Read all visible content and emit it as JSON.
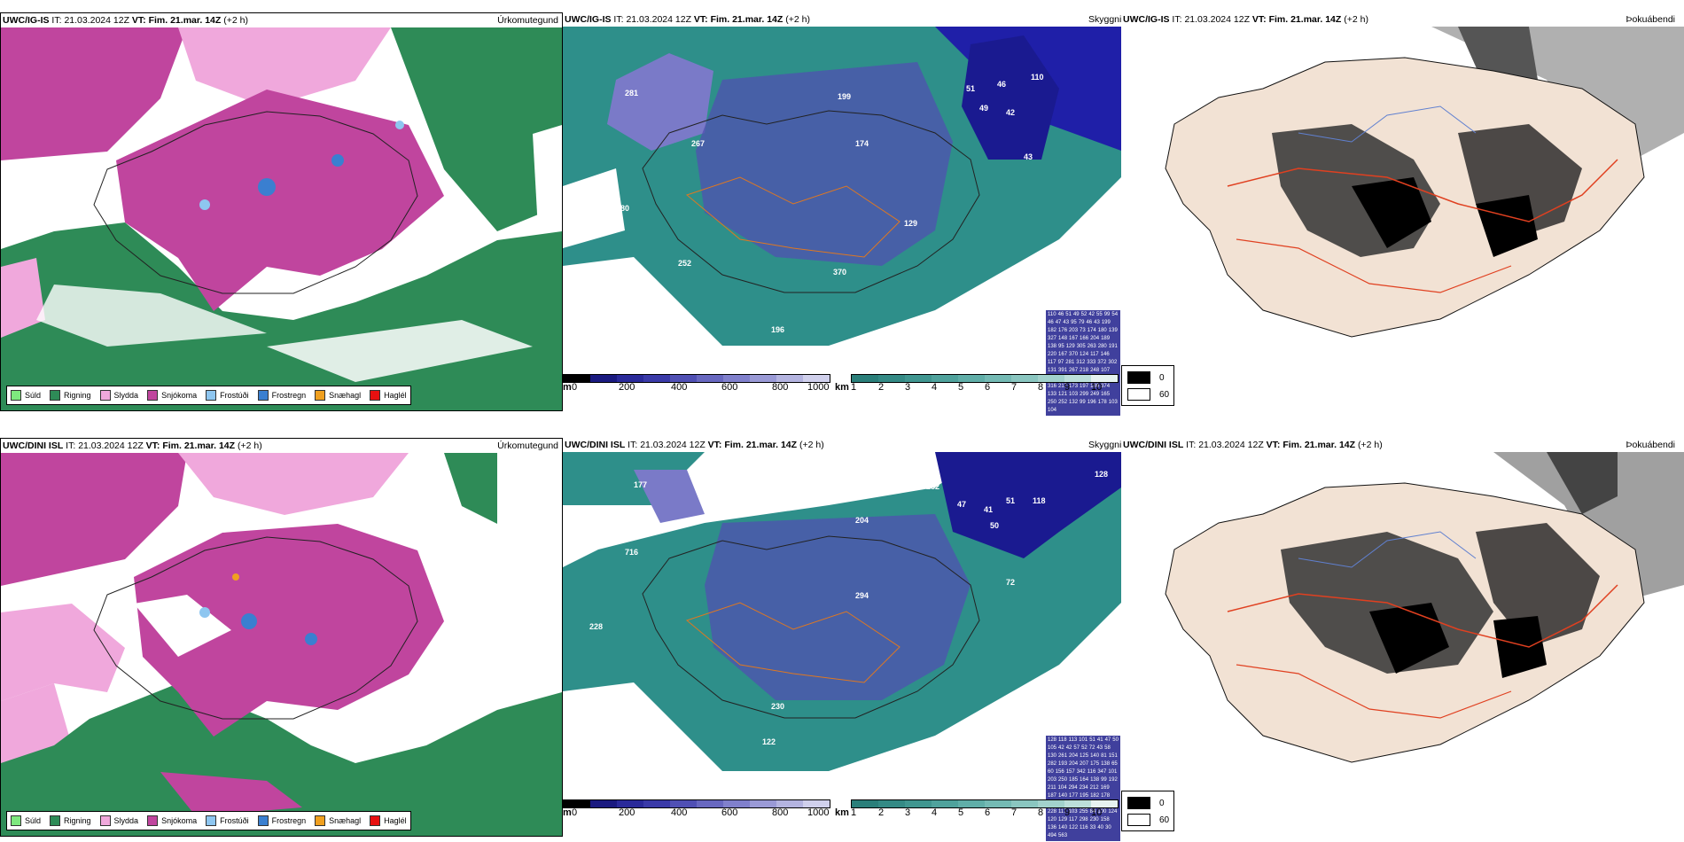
{
  "panels": [
    {
      "model": "UWC/IG-IS",
      "it_label": "IT:",
      "it_value": "21.03.2024 12Z",
      "vt_label": "VT:",
      "vt_value": "Fim. 21.mar. 14Z",
      "offset": "(+2 h)",
      "name": "Úrkomutegund"
    },
    {
      "model": "UWC/IG-IS",
      "it_label": "IT:",
      "it_value": "21.03.2024 12Z",
      "vt_label": "VT:",
      "vt_value": "Fim. 21.mar. 14Z",
      "offset": "(+2 h)",
      "name": "Skyggni"
    },
    {
      "model": "UWC/IG-IS",
      "it_label": "IT:",
      "it_value": "21.03.2024 12Z",
      "vt_label": "VT:",
      "vt_value": "Fim. 21.mar. 14Z",
      "offset": "(+2 h)",
      "name": "Þokuábendi"
    },
    {
      "model": "UWC/DINI ISL",
      "it_label": "IT:",
      "it_value": "21.03.2024 12Z",
      "vt_label": "VT:",
      "vt_value": "Fim. 21.mar. 14Z",
      "offset": "(+2 h)",
      "name": "Úrkomutegund"
    },
    {
      "model": "UWC/DINI ISL",
      "it_label": "IT:",
      "it_value": "21.03.2024 12Z",
      "vt_label": "VT:",
      "vt_value": "Fim. 21.mar. 14Z",
      "offset": "(+2 h)",
      "name": "Skyggni"
    },
    {
      "model": "UWC/DINI ISL",
      "it_label": "IT:",
      "it_value": "21.03.2024 12Z",
      "vt_label": "VT:",
      "vt_value": "Fim. 21.mar. 14Z",
      "offset": "(+2 h)",
      "name": "Þokuábendi"
    }
  ],
  "precip_legend": [
    {
      "label": "Súld",
      "color": "#7ee87e"
    },
    {
      "label": "Rigning",
      "color": "#2e8b57"
    },
    {
      "label": "Slydda",
      "color": "#f0a8dc"
    },
    {
      "label": "Snjókoma",
      "color": "#c0459e"
    },
    {
      "label": "Frostúði",
      "color": "#8ec6f0"
    },
    {
      "label": "Frostregn",
      "color": "#3a7fd0"
    },
    {
      "label": "Snæhagl",
      "color": "#f0a020"
    },
    {
      "label": "Haglél",
      "color": "#e81010"
    }
  ],
  "vis_scale": {
    "m_unit": "m",
    "m_ticks": [
      "0",
      "200",
      "400",
      "600",
      "800",
      "1000"
    ],
    "km_unit": "km",
    "km_ticks": [
      "1",
      "2",
      "3",
      "4",
      "5",
      "6",
      "7",
      "8",
      "9",
      "10"
    ]
  },
  "fog_legend": {
    "black": "0",
    "white": "60"
  },
  "top_vis_numbers": [
    "110",
    "46",
    "51",
    "49",
    "52",
    "42",
    "55",
    "99",
    "54",
    "46",
    "47",
    "43",
    "95",
    "79",
    "46",
    "43",
    "199",
    "182",
    "176",
    "203",
    "73",
    "174",
    "180",
    "139",
    "327",
    "148",
    "167",
    "166",
    "204",
    "189",
    "138",
    "95",
    "129",
    "305",
    "263",
    "280",
    "191",
    "220",
    "167",
    "370",
    "124",
    "117",
    "146",
    "117",
    "97",
    "281",
    "312",
    "333",
    "372",
    "302",
    "131",
    "391",
    "267",
    "218",
    "248",
    "107",
    "181",
    "80",
    "177",
    "95",
    "347",
    "106",
    "423",
    "316",
    "217",
    "173",
    "197",
    "180",
    "374",
    "133",
    "121",
    "103",
    "299",
    "249",
    "165",
    "250",
    "252",
    "132",
    "99",
    "196",
    "178",
    "103",
    "104"
  ],
  "bottom_vis_numbers": [
    "128",
    "118",
    "113",
    "101",
    "51",
    "41",
    "47",
    "50",
    "105",
    "42",
    "42",
    "57",
    "52",
    "72",
    "43",
    "58",
    "130",
    "261",
    "204",
    "125",
    "140",
    "81",
    "151",
    "282",
    "193",
    "204",
    "207",
    "175",
    "138",
    "65",
    "60",
    "156",
    "157",
    "342",
    "116",
    "347",
    "101",
    "203",
    "250",
    "185",
    "164",
    "138",
    "99",
    "192",
    "211",
    "104",
    "294",
    "234",
    "212",
    "169",
    "187",
    "140",
    "177",
    "195",
    "182",
    "178",
    "110",
    "131",
    "716",
    "319",
    "406",
    "231",
    "228",
    "117",
    "103",
    "255",
    "84",
    "100",
    "124",
    "120",
    "129",
    "117",
    "298",
    "230",
    "158",
    "136",
    "140",
    "122",
    "116",
    "33",
    "40",
    "30",
    "494",
    "563"
  ]
}
